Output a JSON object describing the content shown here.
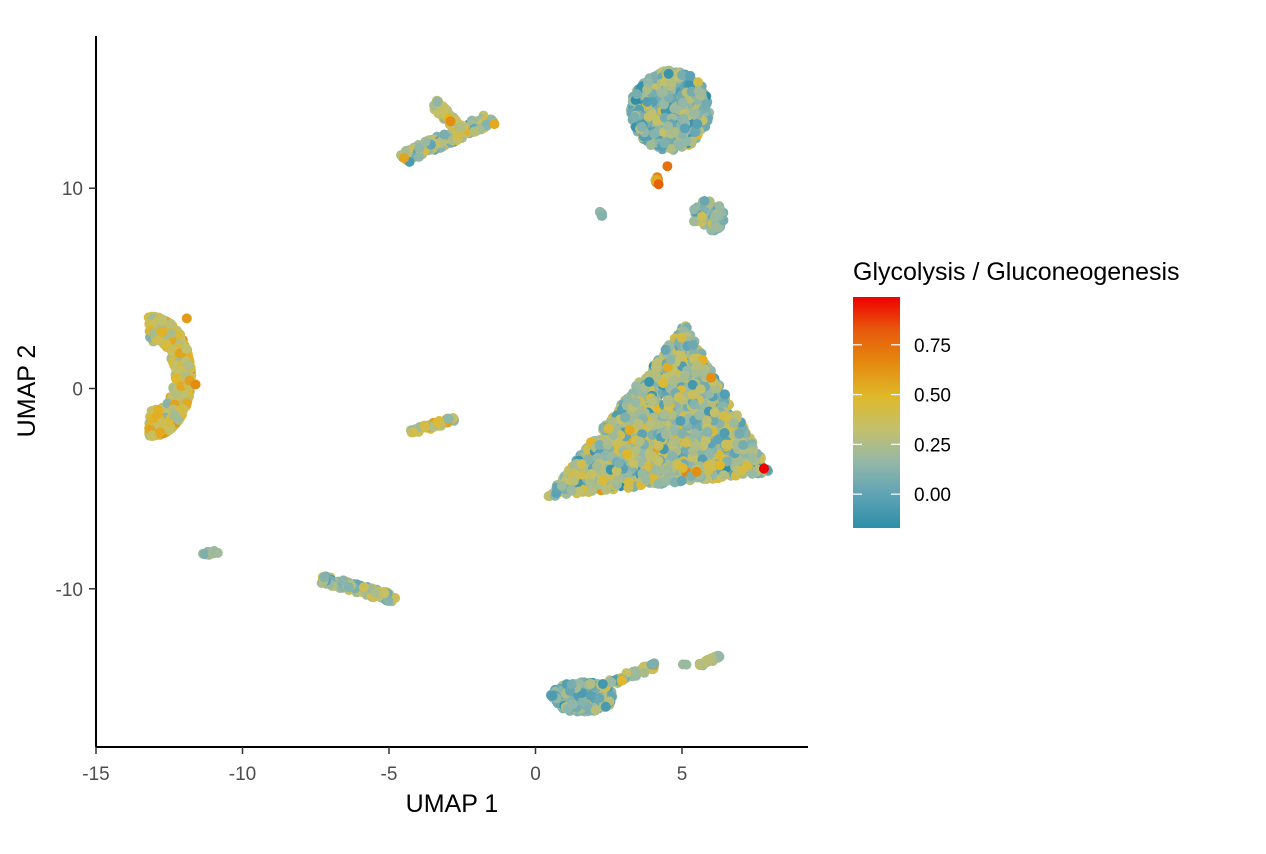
{
  "chart_data": {
    "type": "scatter",
    "title": "",
    "xlabel": "UMAP 1",
    "ylabel": "UMAP 2",
    "xlim": [
      -15,
      9.3
    ],
    "ylim": [
      -17.9,
      17.6
    ],
    "x_ticks": [
      -15,
      -10,
      -5,
      0,
      5
    ],
    "x_tick_labels": [
      "-15",
      "-10",
      "-5",
      "0",
      "5"
    ],
    "y_ticks": [
      10,
      0,
      -10
    ],
    "y_tick_labels": [
      "10",
      "0",
      "-10"
    ],
    "grid": false,
    "legend": {
      "title": "Glycolysis / Gluconeogenesis",
      "placement": "right",
      "range": [
        -0.17,
        0.99
      ],
      "ticks": [
        0.75,
        0.5,
        0.25,
        0.0
      ],
      "tick_labels": [
        "0.75",
        "0.50",
        "0.25",
        "0.00"
      ],
      "colors": [
        "#2e8fa8",
        "#5fa3b5",
        "#94b8a8",
        "#c3c06a",
        "#e0b82a",
        "#e48a0e",
        "#e8590c",
        "#ee0000"
      ]
    },
    "clusters": [
      {
        "name": "A",
        "shape": "ellipse",
        "cx": 4.6,
        "cy": 13.9,
        "rx": 1.35,
        "ry": 2.0,
        "n": 620,
        "mean": 0.12,
        "sd": 0.14
      },
      {
        "name": "B",
        "shape": "ellipse",
        "cx": 5.9,
        "cy": 8.6,
        "rx": 0.55,
        "ry": 0.8,
        "n": 70,
        "mean": 0.15,
        "sd": 0.13
      },
      {
        "name": "C",
        "shape": "blob",
        "cx": 2.2,
        "cy": 8.7,
        "rx": 0.12,
        "ry": 0.12,
        "n": 6,
        "mean": 0.15,
        "sd": 0.05
      },
      {
        "name": "D",
        "shape": "blob",
        "cx": 4.2,
        "cy": 10.5,
        "rx": 0.15,
        "ry": 0.35,
        "n": 6,
        "mean": 0.55,
        "sd": 0.15
      },
      {
        "name": "E",
        "shape": "crescent",
        "cx": -12.5,
        "cy": 0.6,
        "rx": 1.5,
        "ry": 3.0,
        "n": 900,
        "mean": 0.38,
        "sd": 0.12
      },
      {
        "name": "F",
        "shape": "blob",
        "cx": -11.1,
        "cy": -8.2,
        "rx": 0.3,
        "ry": 0.12,
        "n": 12,
        "mean": 0.2,
        "sd": 0.05
      },
      {
        "name": "G",
        "shape": "band",
        "x1": -4.5,
        "y1": 11.5,
        "x2": -1.5,
        "y2": 13.5,
        "width": 0.55,
        "n": 200,
        "mean": 0.25,
        "sd": 0.15
      },
      {
        "name": "H",
        "shape": "band",
        "x1": -3.5,
        "y1": 14.3,
        "x2": -2.6,
        "y2": 13.0,
        "width": 0.35,
        "n": 60,
        "mean": 0.35,
        "sd": 0.12
      },
      {
        "name": "I",
        "shape": "band",
        "x1": -4.3,
        "y1": -2.2,
        "x2": -2.7,
        "y2": -1.5,
        "width": 0.25,
        "n": 45,
        "mean": 0.35,
        "sd": 0.15
      },
      {
        "name": "J",
        "shape": "band",
        "x1": -7.3,
        "y1": -9.5,
        "x2": -4.8,
        "y2": -10.5,
        "width": 0.4,
        "n": 140,
        "mean": 0.22,
        "sd": 0.14
      },
      {
        "name": "K",
        "shape": "triangle",
        "p1": [
          5.1,
          3.2
        ],
        "p2": [
          0.4,
          -5.4
        ],
        "p3": [
          8.0,
          -4.2
        ],
        "n": 2100,
        "mean": 0.22,
        "sd": 0.15
      },
      {
        "name": "L",
        "shape": "ellipse",
        "cx": 1.6,
        "cy": -15.4,
        "rx": 1.1,
        "ry": 0.75,
        "n": 380,
        "mean": 0.1,
        "sd": 0.12
      },
      {
        "name": "M",
        "shape": "band",
        "x1": 2.2,
        "y1": -14.9,
        "x2": 4.1,
        "y2": -13.8,
        "width": 0.3,
        "n": 40,
        "mean": 0.22,
        "sd": 0.15
      },
      {
        "name": "N",
        "shape": "band",
        "x1": 5.6,
        "y1": -13.8,
        "x2": 6.3,
        "y2": -13.4,
        "width": 0.2,
        "n": 22,
        "mean": 0.25,
        "sd": 0.08
      },
      {
        "name": "O",
        "shape": "blob",
        "cx": 5.1,
        "cy": -13.8,
        "rx": 0.08,
        "ry": 0.08,
        "n": 2,
        "mean": 0.15,
        "sd": 0.05
      }
    ],
    "highlighted_points": [
      {
        "x": 7.8,
        "y": -4.0,
        "value": 0.99
      },
      {
        "x": 4.5,
        "y": 11.1,
        "value": 0.75
      },
      {
        "x": 4.2,
        "y": 10.2,
        "value": 0.8
      },
      {
        "x": -1.4,
        "y": 13.2,
        "value": 0.55
      },
      {
        "x": -11.9,
        "y": 3.5,
        "value": 0.6
      },
      {
        "x": -11.6,
        "y": 0.2,
        "value": 0.65
      }
    ]
  }
}
